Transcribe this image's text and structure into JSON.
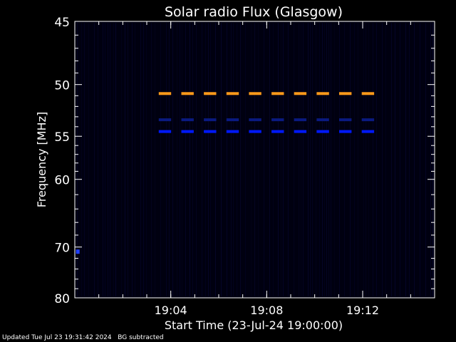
{
  "chart_data": {
    "type": "heatmap",
    "title": "Solar radio Flux (Glasgow)",
    "xlabel": "Start Time (23-Jul-24 19:00:00)",
    "ylabel": "Frequency [MHz]",
    "xlim_minutes": [
      19.0,
      15.0
    ],
    "x_ticks": [
      {
        "minute": 4,
        "label": "19:04"
      },
      {
        "minute": 8,
        "label": "19:08"
      },
      {
        "minute": 12,
        "label": "19:12"
      }
    ],
    "ylim": [
      45,
      80
    ],
    "y_scale": "reciprocal",
    "y_ticks": [
      {
        "value": 45,
        "label": "45"
      },
      {
        "value": 50,
        "label": "50"
      },
      {
        "value": 55,
        "label": "55"
      },
      {
        "value": 60,
        "label": "60"
      },
      {
        "value": 70,
        "label": "70"
      },
      {
        "value": 80,
        "label": "80"
      }
    ],
    "background": "#000010",
    "signals": [
      {
        "freq_mhz": 50.8,
        "color": "#ff9a1a",
        "start_minute": 3.5,
        "end_minute": 12.9
      },
      {
        "freq_mhz": 53.3,
        "color": "#0a1a80",
        "start_minute": 3.5,
        "end_minute": 12.9
      },
      {
        "freq_mhz": 54.5,
        "color": "#0018ff",
        "start_minute": 3.5,
        "end_minute": 12.9
      },
      {
        "freq_mhz": 70.8,
        "color": "#2040ff",
        "start_minute": 0.05,
        "end_minute": 0.2
      }
    ]
  },
  "footer": {
    "updated": "Updated Tue Jul 23 19:31:42 2024",
    "note": "BG subtracted"
  }
}
